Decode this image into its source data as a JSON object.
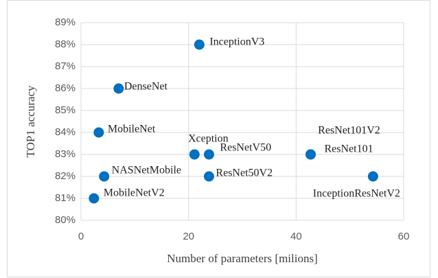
{
  "chart_data": {
    "type": "scatter",
    "xlabel": "Number of parameters [milions]",
    "ylabel": "TOP1 accuracy",
    "labels": [
      "InceptionV3",
      "DenseNet",
      "MobileNet",
      "Xception",
      "ResNetV50",
      "ResNet101V2",
      "ResNet101",
      "NASNetMobile",
      "ResNet50V2",
      "InceptionResNetV2",
      "MobileNetV2"
    ],
    "x": [
      22.0,
      7.0,
      3.3,
      21.1,
      23.8,
      42.7,
      42.7,
      4.3,
      23.8,
      54.3,
      2.4
    ],
    "values": [
      88,
      86,
      84,
      83,
      83,
      83,
      83,
      82,
      82,
      82,
      81
    ],
    "color": "#0070c0",
    "xlim": [
      0,
      60
    ],
    "xticks": [
      0,
      20,
      40,
      60
    ],
    "ylim": [
      80,
      89
    ],
    "yticks": [
      {
        "value": 80,
        "label": "80%"
      },
      {
        "value": 81,
        "label": "81%"
      },
      {
        "value": 82,
        "label": "82%"
      },
      {
        "value": 83,
        "label": "83%"
      },
      {
        "value": 84,
        "label": "84%"
      },
      {
        "value": 85,
        "label": "85%"
      },
      {
        "value": 86,
        "label": "86%"
      },
      {
        "value": 87,
        "label": "87%"
      },
      {
        "value": 88,
        "label": "88%"
      },
      {
        "value": 89,
        "label": "89%"
      }
    ],
    "grid": true
  }
}
